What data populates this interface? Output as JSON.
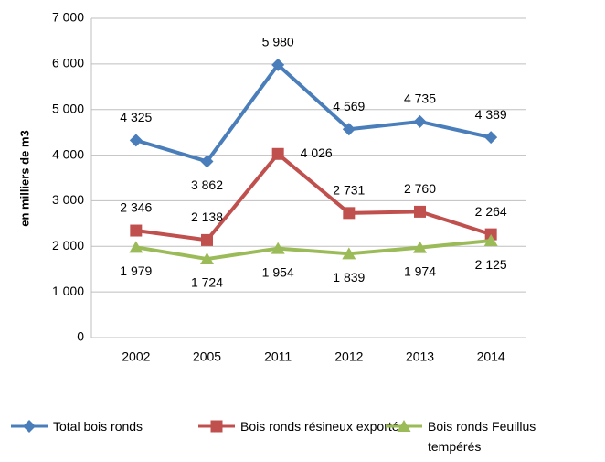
{
  "chart_data": {
    "type": "line",
    "y_label": "en milliers de m3",
    "categories": [
      "2002",
      "2005",
      "2011",
      "2012",
      "2013",
      "2014"
    ],
    "series": [
      {
        "name": "Total bois ronds",
        "color": "#4a7ebb",
        "marker": "diamond",
        "values": [
          4325,
          3862,
          5980,
          4569,
          4735,
          4389
        ],
        "value_labels": [
          "4 325",
          "3 862",
          "5 980",
          "4 569",
          "4 735",
          "4 389"
        ]
      },
      {
        "name": "Bois ronds résineux exporté",
        "color": "#c0504d",
        "marker": "square",
        "values": [
          2346,
          2138,
          4026,
          2731,
          2760,
          2264
        ],
        "value_labels": [
          "2 346",
          "2 138",
          "4 026",
          "2 731",
          "2 760",
          "2 264"
        ]
      },
      {
        "name": "Bois ronds Feuillus tempérés",
        "color": "#9bbb59",
        "marker": "triangle",
        "values": [
          1979,
          1724,
          1954,
          1839,
          1974,
          2125
        ],
        "value_labels": [
          "1 979",
          "1 724",
          "1 954",
          "1 839",
          "1 974",
          "2 125"
        ]
      }
    ],
    "ylim": [
      0,
      7000
    ],
    "yticks": [
      0,
      {
        "value": 1000,
        "label": "1 000"
      },
      {
        "value": 2000,
        "label": "2 000"
      },
      {
        "value": 3000,
        "label": "3 000"
      },
      {
        "value": 4000,
        "label": "4 000"
      },
      {
        "value": 5000,
        "label": "5 000"
      },
      {
        "value": 6000,
        "label": "6 000"
      },
      {
        "value": 7000,
        "label": "7 000"
      }
    ],
    "grid": true
  }
}
